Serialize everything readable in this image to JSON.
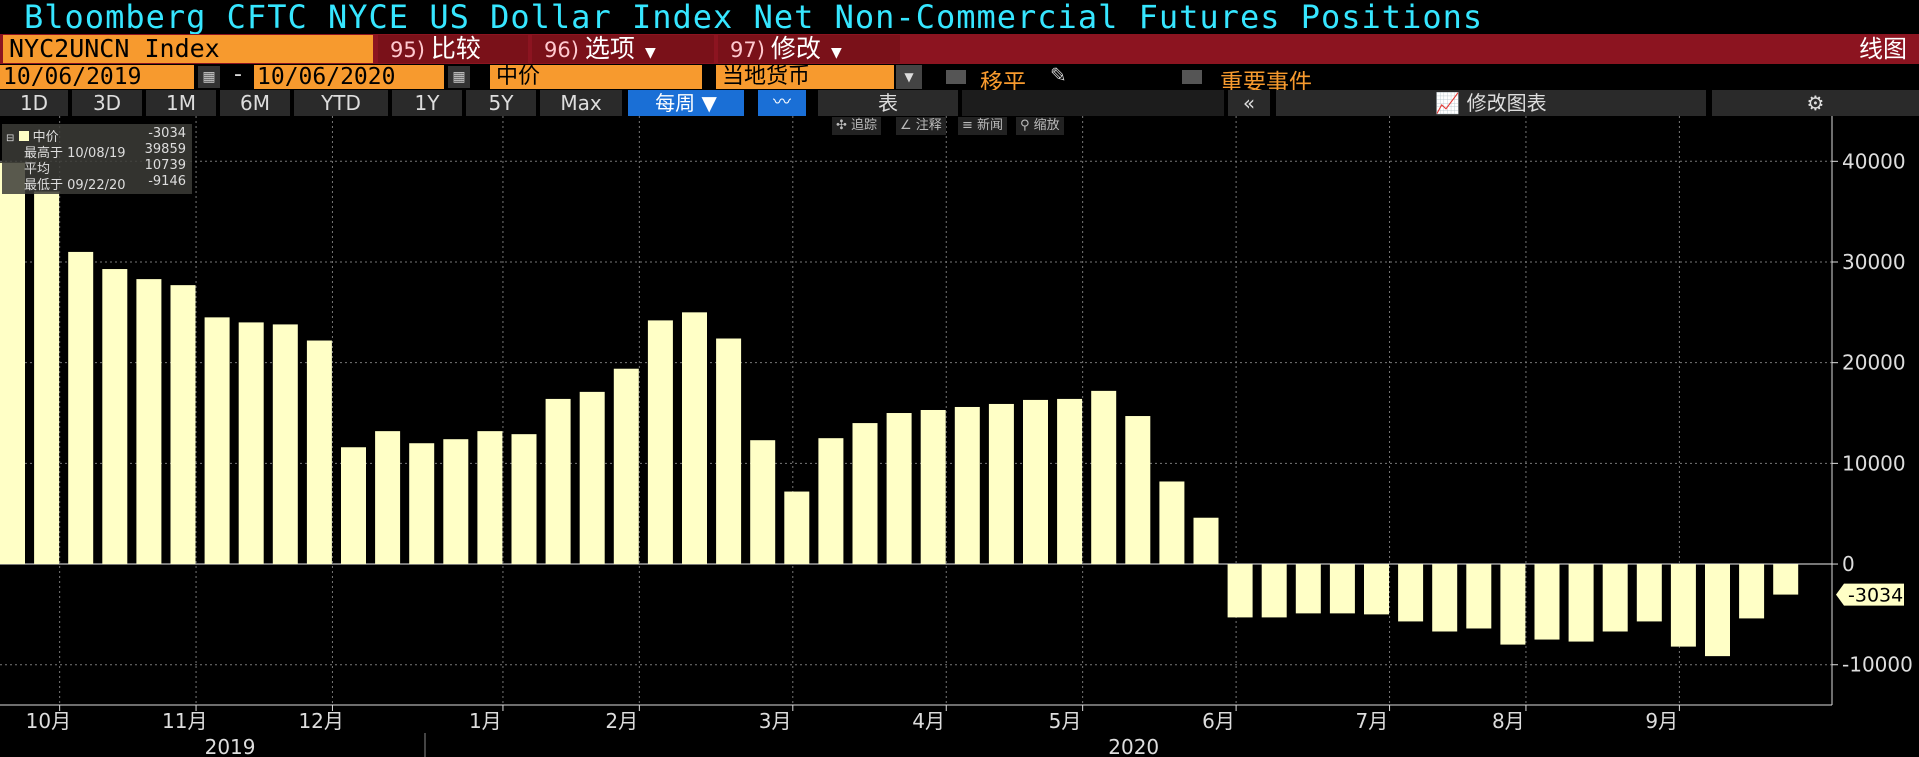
{
  "header": {
    "title": "Bloomberg CFTC NYCE US Dollar Index Net Non-Commercial Futures Positions",
    "ticker": "NYC2UNCN Index",
    "menu": [
      {
        "num": "95)",
        "label": "比较"
      },
      {
        "num": "96)",
        "label": "选项"
      },
      {
        "num": "97)",
        "label": "修改"
      }
    ],
    "chart_type": "线图"
  },
  "controls": {
    "start_date": "10/06/2019",
    "date_separator": "-",
    "end_date": "10/06/2020",
    "price_field": "中价",
    "currency_field": "当地货币",
    "shift_label": "移平",
    "events_label": "重要事件"
  },
  "periods": [
    "1D",
    "3D",
    "1M",
    "6M",
    "YTD",
    "1Y",
    "5Y",
    "Max"
  ],
  "frequency": "每周",
  "table_label": "表",
  "collapse_label": "«",
  "edit_chart_label": "修改图表",
  "mini_tools": [
    "追踪",
    "注释",
    "新闻",
    "缩放"
  ],
  "legend": {
    "series": "中价",
    "last": "-3034",
    "high_label": "最高于 10/08/19",
    "high_value": "39859",
    "avg_label": "平均",
    "avg_value": "10739",
    "low_label": "最低于 09/22/20",
    "low_value": "-9146"
  },
  "colors": {
    "title": "#36e6ff",
    "bar": "#ffffc6",
    "ticker_bg": "#f79a2e",
    "menu_bar_bg": "#8c1420",
    "active_btn": "#1a6fd6"
  },
  "chart_data": {
    "type": "bar",
    "series": [
      {
        "name": "中价",
        "values": [
          39859,
          37000,
          31000,
          29300,
          28300,
          27700,
          24500,
          24000,
          23800,
          22200,
          11600,
          13200,
          12000,
          12400,
          13200,
          12900,
          16400,
          17100,
          19400,
          24200,
          25000,
          22400,
          12300,
          7200,
          12500,
          14000,
          15000,
          15300,
          15600,
          15900,
          16300,
          16400,
          17200,
          14700,
          8200,
          4600,
          -5300,
          -5300,
          -4900,
          -4900,
          -5000,
          -5700,
          -6700,
          -6400,
          -8000,
          -7500,
          -7700,
          -6700,
          -5700,
          -8200,
          -9146,
          -5400,
          -3034
        ]
      }
    ],
    "ylim": [
      -14000,
      44500
    ],
    "yticks": [
      -10000,
      0,
      10000,
      20000,
      30000,
      40000
    ],
    "ytick_labels": [
      "-10000",
      "0",
      "10000",
      "20000",
      "30000",
      "40000"
    ],
    "xticks": [
      {
        "label": "10月",
        "bar": 1
      },
      {
        "label": "11月",
        "bar": 5
      },
      {
        "label": "12月",
        "bar": 9
      },
      {
        "label": "1月",
        "bar": 14
      },
      {
        "label": "2月",
        "bar": 18
      },
      {
        "label": "3月",
        "bar": 22.5
      },
      {
        "label": "4月",
        "bar": 27
      },
      {
        "label": "5月",
        "bar": 31
      },
      {
        "label": "6月",
        "bar": 35.5
      },
      {
        "label": "7月",
        "bar": 40
      },
      {
        "label": "8月",
        "bar": 44
      },
      {
        "label": "9月",
        "bar": 48.5
      }
    ],
    "year_labels": [
      {
        "label": "2019",
        "bar": 6
      },
      {
        "label": "2020",
        "bar": 32.5
      }
    ],
    "last_value_label": "-3034",
    "grid": true,
    "legend_position": "top-left"
  }
}
